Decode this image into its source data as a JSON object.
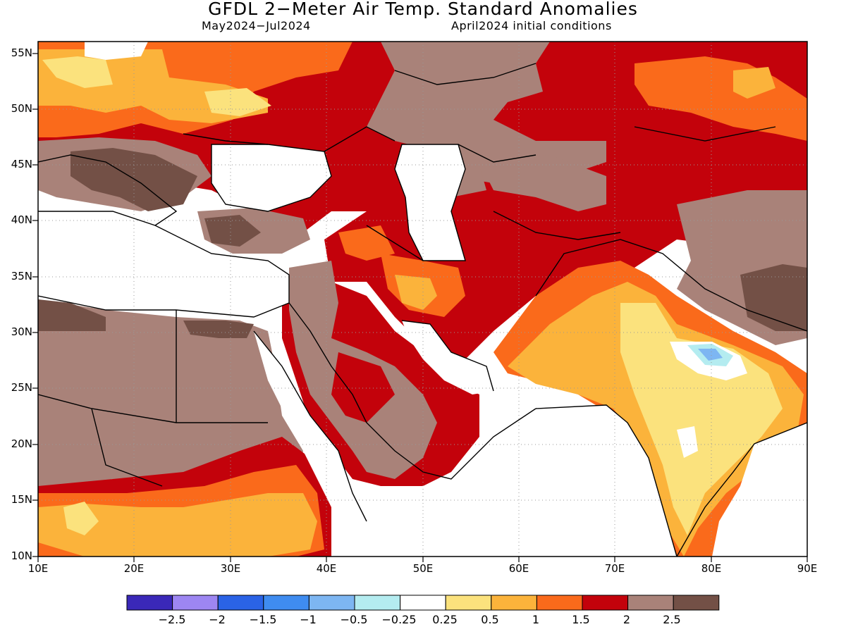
{
  "header": {
    "title": "GFDL 2−Meter Air Temp. Standard Anomalies",
    "period": "May2024−Jul2024",
    "init": "April2024 initial conditions"
  },
  "axes": {
    "lat_labels": [
      "55N",
      "50N",
      "45N",
      "40N",
      "35N",
      "30N",
      "25N",
      "20N",
      "15N",
      "10N"
    ],
    "lat_values": [
      55,
      50,
      45,
      40,
      35,
      30,
      25,
      20,
      15,
      10
    ],
    "lon_labels": [
      "10E",
      "20E",
      "30E",
      "40E",
      "50E",
      "60E",
      "70E",
      "80E",
      "90E"
    ],
    "lon_values": [
      10,
      20,
      30,
      40,
      50,
      60,
      70,
      80,
      90
    ],
    "lon_range": [
      10,
      90
    ],
    "lat_range": [
      10,
      56.3
    ],
    "grid": "dotted"
  },
  "colorbar": {
    "colors": [
      "#3a28b8",
      "#9d86f2",
      "#2a63e6",
      "#3f8cf0",
      "#7db6f2",
      "#b4ecf0",
      "#ffffff",
      "#fbe27d",
      "#fbb33b",
      "#fa6a1b",
      "#c3020b",
      "#a98279",
      "#735046"
    ],
    "labels": [
      "−2.5",
      "−2",
      "−1.5",
      "−1",
      "−0.5",
      "−0.25",
      "0.25",
      "0.5",
      "1",
      "1.5",
      "2",
      "2.5"
    ]
  },
  "map_colors": {
    "brown": "#a98279",
    "dark_brown": "#735046",
    "red": "#c3020b",
    "orange": "#fa6a1b",
    "light_orange": "#fbb33b",
    "yellow": "#fbe27d",
    "white": "#ffffff",
    "light_blue": "#b4ecf0",
    "blue": "#7db6f2",
    "coast": "#000000"
  }
}
